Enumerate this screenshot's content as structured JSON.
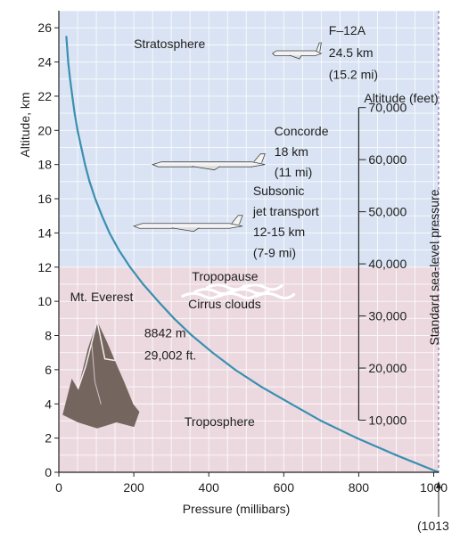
{
  "chart_data": {
    "type": "line",
    "xlabel": "Pressure (millibars)",
    "ylabel": "Altitude, km",
    "xlim": [
      0,
      1013
    ],
    "ylim": [
      0,
      27
    ],
    "x_ticks": [
      0,
      200,
      400,
      600,
      800,
      1000
    ],
    "y_ticks": [
      0,
      2,
      4,
      6,
      8,
      10,
      12,
      14,
      16,
      18,
      20,
      22,
      24,
      26
    ],
    "grid": true,
    "x_note": "(1013",
    "series": [
      {
        "x": [
          1013,
          900,
          795,
          700,
          620,
          540,
          470,
          410,
          355,
          307,
          265,
          225,
          190,
          160,
          135,
          115,
          97,
          82,
          70,
          60,
          50,
          42,
          36,
          30,
          25,
          20
        ],
        "y": [
          0,
          1,
          2,
          3,
          4,
          5,
          6,
          7,
          8,
          9,
          10,
          11,
          12,
          13,
          14,
          15,
          16,
          17,
          18,
          19,
          20,
          21,
          22,
          23,
          24,
          25.5
        ]
      }
    ],
    "secondary_axis": {
      "title": "Altitude (feet)",
      "ticks": [
        {
          "feet": 10000,
          "label": "10,000"
        },
        {
          "feet": 20000,
          "label": "20,000"
        },
        {
          "feet": 30000,
          "label": "30,000"
        },
        {
          "feet": 40000,
          "label": "40,000"
        },
        {
          "feet": 50000,
          "label": "50,000"
        },
        {
          "feet": 60000,
          "label": "60,000"
        },
        {
          "feet": 70000,
          "label": "70,000"
        }
      ]
    },
    "right_edge_label": "Standard sea-level pressure",
    "layers": [
      {
        "name": "Troposphere",
        "from_km": 0,
        "to_km": 12,
        "color": "#ecd9e0"
      },
      {
        "name": "Stratosphere",
        "from_km": 12,
        "to_km": 27,
        "color": "#d9e3f3"
      }
    ],
    "annotations": [
      {
        "text": "Stratosphere",
        "x": 200,
        "y": 24.8
      },
      {
        "text": "F–12A",
        "x": 720,
        "y": 25.6
      },
      {
        "text": "24.5 km",
        "x": 720,
        "y": 24.3
      },
      {
        "text": "(15.2 mi)",
        "x": 720,
        "y": 23
      },
      {
        "text": "Concorde",
        "x": 575,
        "y": 19.7
      },
      {
        "text": "18 km",
        "x": 575,
        "y": 18.5
      },
      {
        "text": "(11 mi)",
        "x": 575,
        "y": 17.3
      },
      {
        "text": "Subsonic",
        "x": 518,
        "y": 16.2
      },
      {
        "text": "jet transport",
        "x": 518,
        "y": 15
      },
      {
        "text": "12-15 km",
        "x": 518,
        "y": 13.8
      },
      {
        "text": "(7-9 mi)",
        "x": 518,
        "y": 12.6
      },
      {
        "text": "Tropopause",
        "x": 355,
        "y": 11.2
      },
      {
        "text": "Mt. Everest",
        "x": 30,
        "y": 10
      },
      {
        "text": "Cirrus clouds",
        "x": 345,
        "y": 9.6
      },
      {
        "text": "8842 m",
        "x": 228,
        "y": 7.9
      },
      {
        "text": "29,002 ft.",
        "x": 228,
        "y": 6.6
      },
      {
        "text": "Troposphere",
        "x": 335,
        "y": 2.7
      }
    ],
    "aircraft": [
      {
        "name": "F-12A",
        "x_from": 570,
        "x_to": 700,
        "y": 24.5
      },
      {
        "name": "Concorde",
        "x_from": 250,
        "x_to": 550,
        "y": 18
      },
      {
        "name": "Subsonic jet transport",
        "x_from": 200,
        "x_to": 490,
        "y": 14.4
      }
    ],
    "mountain": {
      "name": "Mt. Everest",
      "x_from": 10,
      "x_to": 215,
      "height_km": 8.842
    },
    "clouds": {
      "name": "Cirrus clouds",
      "x_from": 330,
      "x_to": 560,
      "y": 10.8
    }
  }
}
